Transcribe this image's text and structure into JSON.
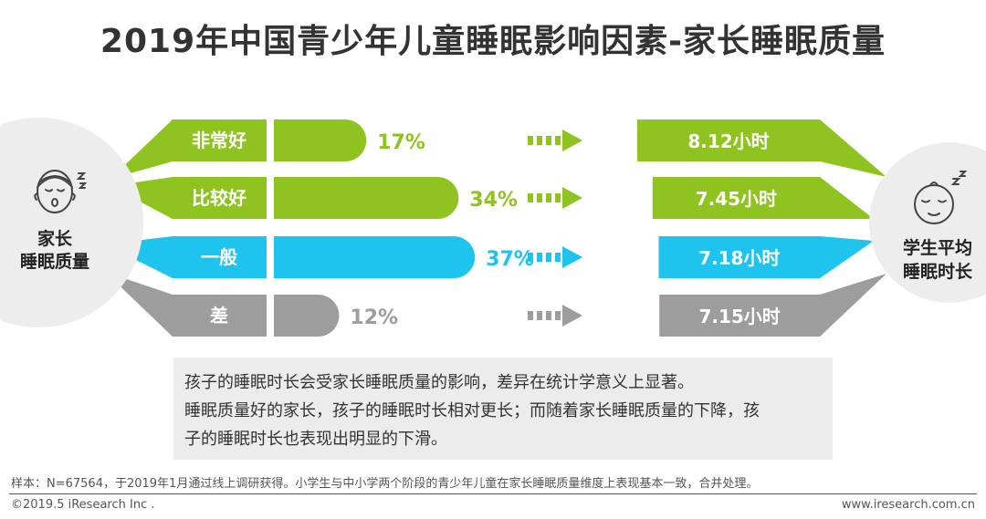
{
  "title": "2019年中国青少年儿童睡眠影响因素-家长睡眠质量",
  "left_label": [
    "家长",
    "睡眠质量"
  ],
  "right_label": [
    "学生平均",
    "睡眠时长"
  ],
  "colors": {
    "very_good": "#8fc31f",
    "good": "#8fc31f",
    "average": "#1ec4ee",
    "poor": "#9d9d9d",
    "circle": "#ededed"
  },
  "chart_data": {
    "type": "bar",
    "title": "2019年中国青少年儿童睡眠影响因素-家长睡眠质量",
    "categories": [
      "非常好",
      "比较好",
      "一般",
      "差"
    ],
    "series": [
      {
        "name": "家长睡眠质量占比",
        "values": [
          17,
          34,
          37,
          12
        ],
        "labels": [
          "17%",
          "34%",
          "37%",
          "12%"
        ]
      },
      {
        "name": "学生平均睡眠时长",
        "values": [
          8.12,
          7.45,
          7.18,
          7.15
        ],
        "labels": [
          "8.12小时",
          "7.45小时",
          "7.18小时",
          "7.15小时"
        ]
      }
    ],
    "xlabel": "",
    "ylabel": ""
  },
  "note": [
    "孩子的睡眠时长会受家长睡眠质量的影响，差异在统计学意义上显著。",
    "睡眠质量好的家长，孩子的睡眠时长相对更长；而随着家长睡眠质量的下降，孩",
    "子的睡眠时长也表现出明显的下滑。"
  ],
  "footnote": "样本：N=67564，于2019年1月通过线上调研获得。小学生与中小学两个阶段的青少年儿童在家长睡眠质量维度上表现基本一致，合并处理。",
  "copyright": "©2019.5 iResearch Inc .",
  "website": "www.iresearch.com.cn"
}
